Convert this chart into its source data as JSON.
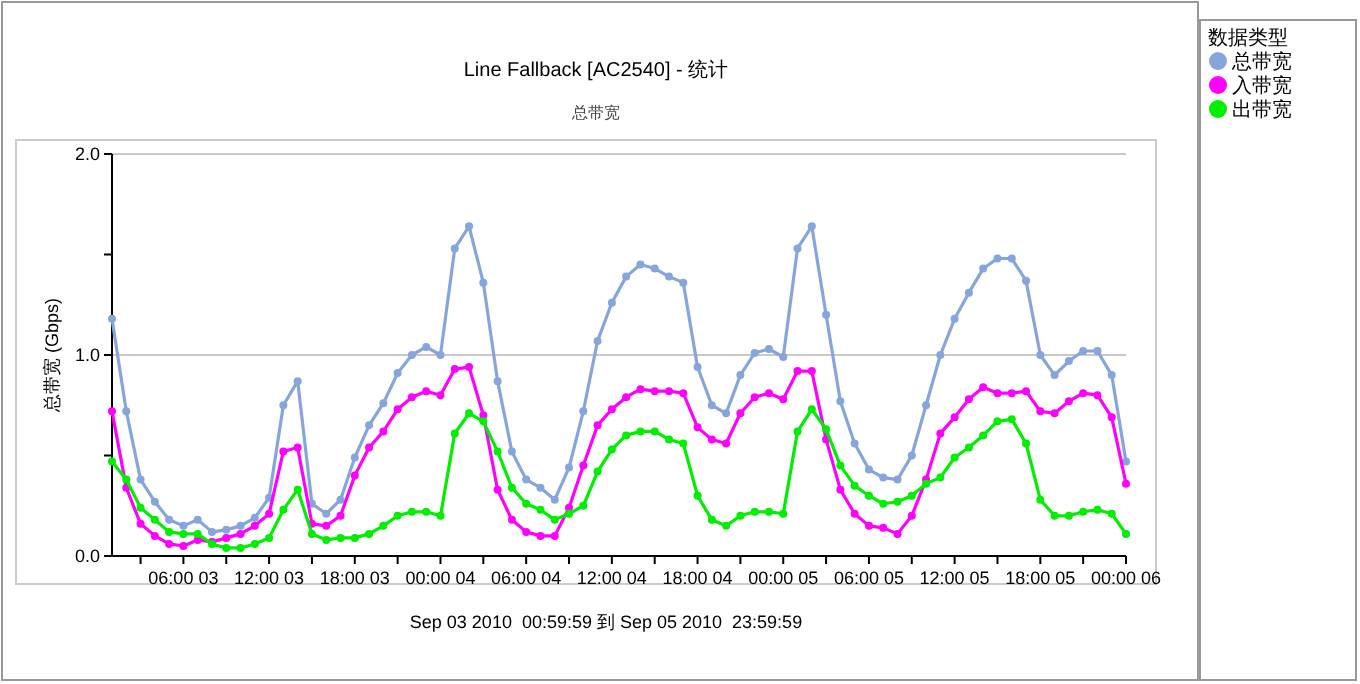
{
  "chart_data": {
    "type": "line",
    "title": "Line Fallback [AC2540] - 统计",
    "subtitle": "总带宽",
    "ylabel": "总带宽 (Gbps)",
    "xlabel": "Sep 03 2010  00:59:59 到 Sep 05 2010  23:59:59",
    "legend_title": "数据类型",
    "x": [
      "2010-09-03T01:00",
      "2010-09-03T02:00",
      "2010-09-03T03:00",
      "2010-09-03T04:00",
      "2010-09-03T05:00",
      "2010-09-03T06:00",
      "2010-09-03T07:00",
      "2010-09-03T08:00",
      "2010-09-03T09:00",
      "2010-09-03T10:00",
      "2010-09-03T11:00",
      "2010-09-03T12:00",
      "2010-09-03T13:00",
      "2010-09-03T14:00",
      "2010-09-03T15:00",
      "2010-09-03T16:00",
      "2010-09-03T17:00",
      "2010-09-03T18:00",
      "2010-09-03T19:00",
      "2010-09-03T20:00",
      "2010-09-03T21:00",
      "2010-09-03T22:00",
      "2010-09-03T23:00",
      "2010-09-04T00:00",
      "2010-09-04T01:00",
      "2010-09-04T02:00",
      "2010-09-04T03:00",
      "2010-09-04T04:00",
      "2010-09-04T05:00",
      "2010-09-04T06:00",
      "2010-09-04T07:00",
      "2010-09-04T08:00",
      "2010-09-04T09:00",
      "2010-09-04T10:00",
      "2010-09-04T11:00",
      "2010-09-04T12:00",
      "2010-09-04T13:00",
      "2010-09-04T14:00",
      "2010-09-04T15:00",
      "2010-09-04T16:00",
      "2010-09-04T17:00",
      "2010-09-04T18:00",
      "2010-09-04T19:00",
      "2010-09-04T20:00",
      "2010-09-04T21:00",
      "2010-09-04T22:00",
      "2010-09-04T23:00",
      "2010-09-05T00:00",
      "2010-09-05T01:00",
      "2010-09-05T02:00",
      "2010-09-05T03:00",
      "2010-09-05T04:00",
      "2010-09-05T05:00",
      "2010-09-05T06:00",
      "2010-09-05T07:00",
      "2010-09-05T08:00",
      "2010-09-05T09:00",
      "2010-09-05T10:00",
      "2010-09-05T11:00",
      "2010-09-05T12:00",
      "2010-09-05T13:00",
      "2010-09-05T14:00",
      "2010-09-05T15:00",
      "2010-09-05T16:00",
      "2010-09-05T17:00",
      "2010-09-05T18:00",
      "2010-09-05T19:00",
      "2010-09-05T20:00",
      "2010-09-05T21:00",
      "2010-09-05T22:00",
      "2010-09-05T23:00",
      "2010-09-06T00:00"
    ],
    "series": [
      {
        "name": "总带宽",
        "color": "#85a5db",
        "values": [
          1.18,
          0.72,
          0.38,
          0.27,
          0.18,
          0.15,
          0.18,
          0.12,
          0.13,
          0.15,
          0.19,
          0.29,
          0.75,
          0.87,
          0.26,
          0.21,
          0.28,
          0.49,
          0.65,
          0.76,
          0.91,
          1.0,
          1.04,
          1.0,
          1.53,
          1.64,
          1.36,
          0.87,
          0.52,
          0.38,
          0.34,
          0.28,
          0.44,
          0.72,
          1.07,
          1.26,
          1.39,
          1.45,
          1.43,
          1.39,
          1.36,
          0.94,
          0.75,
          0.71,
          0.9,
          1.01,
          1.03,
          0.99,
          1.53,
          1.64,
          1.2,
          0.77,
          0.56,
          0.43,
          0.39,
          0.38,
          0.5,
          0.75,
          1.0,
          1.18,
          1.31,
          1.43,
          1.48,
          1.48,
          1.37,
          1.0,
          0.9,
          0.97,
          1.02,
          1.02,
          0.9,
          0.47
        ]
      },
      {
        "name": "入带宽",
        "color": "#ff00ff",
        "values": [
          0.72,
          0.34,
          0.16,
          0.1,
          0.06,
          0.05,
          0.08,
          0.07,
          0.09,
          0.11,
          0.15,
          0.21,
          0.52,
          0.54,
          0.16,
          0.15,
          0.2,
          0.4,
          0.54,
          0.62,
          0.73,
          0.79,
          0.82,
          0.8,
          0.93,
          0.94,
          0.7,
          0.33,
          0.18,
          0.12,
          0.1,
          0.1,
          0.24,
          0.45,
          0.65,
          0.73,
          0.79,
          0.83,
          0.82,
          0.82,
          0.81,
          0.64,
          0.58,
          0.56,
          0.71,
          0.79,
          0.81,
          0.78,
          0.92,
          0.92,
          0.58,
          0.33,
          0.21,
          0.15,
          0.14,
          0.11,
          0.2,
          0.38,
          0.61,
          0.69,
          0.78,
          0.84,
          0.81,
          0.81,
          0.82,
          0.72,
          0.71,
          0.77,
          0.81,
          0.8,
          0.69,
          0.36
        ]
      },
      {
        "name": "出带宽",
        "color": "#00ee00",
        "values": [
          0.47,
          0.38,
          0.24,
          0.18,
          0.12,
          0.11,
          0.11,
          0.06,
          0.04,
          0.04,
          0.06,
          0.09,
          0.23,
          0.33,
          0.11,
          0.08,
          0.09,
          0.09,
          0.11,
          0.15,
          0.2,
          0.22,
          0.22,
          0.2,
          0.61,
          0.71,
          0.67,
          0.52,
          0.34,
          0.26,
          0.23,
          0.18,
          0.21,
          0.25,
          0.42,
          0.53,
          0.6,
          0.62,
          0.62,
          0.58,
          0.56,
          0.3,
          0.18,
          0.15,
          0.2,
          0.22,
          0.22,
          0.21,
          0.62,
          0.73,
          0.63,
          0.45,
          0.35,
          0.3,
          0.26,
          0.27,
          0.3,
          0.36,
          0.39,
          0.49,
          0.54,
          0.6,
          0.67,
          0.68,
          0.56,
          0.28,
          0.2,
          0.2,
          0.22,
          0.23,
          0.21,
          0.11
        ]
      }
    ],
    "xlim": [
      "2010-09-03T01:00",
      "2010-09-06T00:00"
    ],
    "xticks": [
      {
        "value": "2010-09-03T03:00",
        "label": null
      },
      {
        "value": "2010-09-03T06:00",
        "label": "06:00 03"
      },
      {
        "value": "2010-09-03T09:00",
        "label": null
      },
      {
        "value": "2010-09-03T12:00",
        "label": "12:00 03"
      },
      {
        "value": "2010-09-03T15:00",
        "label": null
      },
      {
        "value": "2010-09-03T18:00",
        "label": "18:00 03"
      },
      {
        "value": "2010-09-03T21:00",
        "label": null
      },
      {
        "value": "2010-09-04T00:00",
        "label": "00:00 04"
      },
      {
        "value": "2010-09-04T03:00",
        "label": null
      },
      {
        "value": "2010-09-04T06:00",
        "label": "06:00 04"
      },
      {
        "value": "2010-09-04T09:00",
        "label": null
      },
      {
        "value": "2010-09-04T12:00",
        "label": "12:00 04"
      },
      {
        "value": "2010-09-04T15:00",
        "label": null
      },
      {
        "value": "2010-09-04T18:00",
        "label": "18:00 04"
      },
      {
        "value": "2010-09-04T21:00",
        "label": null
      },
      {
        "value": "2010-09-05T00:00",
        "label": "00:00 05"
      },
      {
        "value": "2010-09-05T03:00",
        "label": null
      },
      {
        "value": "2010-09-05T06:00",
        "label": "06:00 05"
      },
      {
        "value": "2010-09-05T09:00",
        "label": null
      },
      {
        "value": "2010-09-05T12:00",
        "label": "12:00 05"
      },
      {
        "value": "2010-09-05T15:00",
        "label": null
      },
      {
        "value": "2010-09-05T18:00",
        "label": "18:00 05"
      },
      {
        "value": "2010-09-05T21:00",
        "label": null
      },
      {
        "value": "2010-09-06T00:00",
        "label": "00:00 06"
      }
    ],
    "ylim": [
      0,
      2
    ],
    "yticks": [
      {
        "value": 0,
        "label": "0.0"
      },
      {
        "value": 0.5,
        "label": null
      },
      {
        "value": 1,
        "label": "1.0"
      },
      {
        "value": 1.5,
        "label": null
      },
      {
        "value": 2,
        "label": "2.0"
      }
    ],
    "grid": "y",
    "legend": "right",
    "marker": "circle",
    "line_style": "solid"
  }
}
